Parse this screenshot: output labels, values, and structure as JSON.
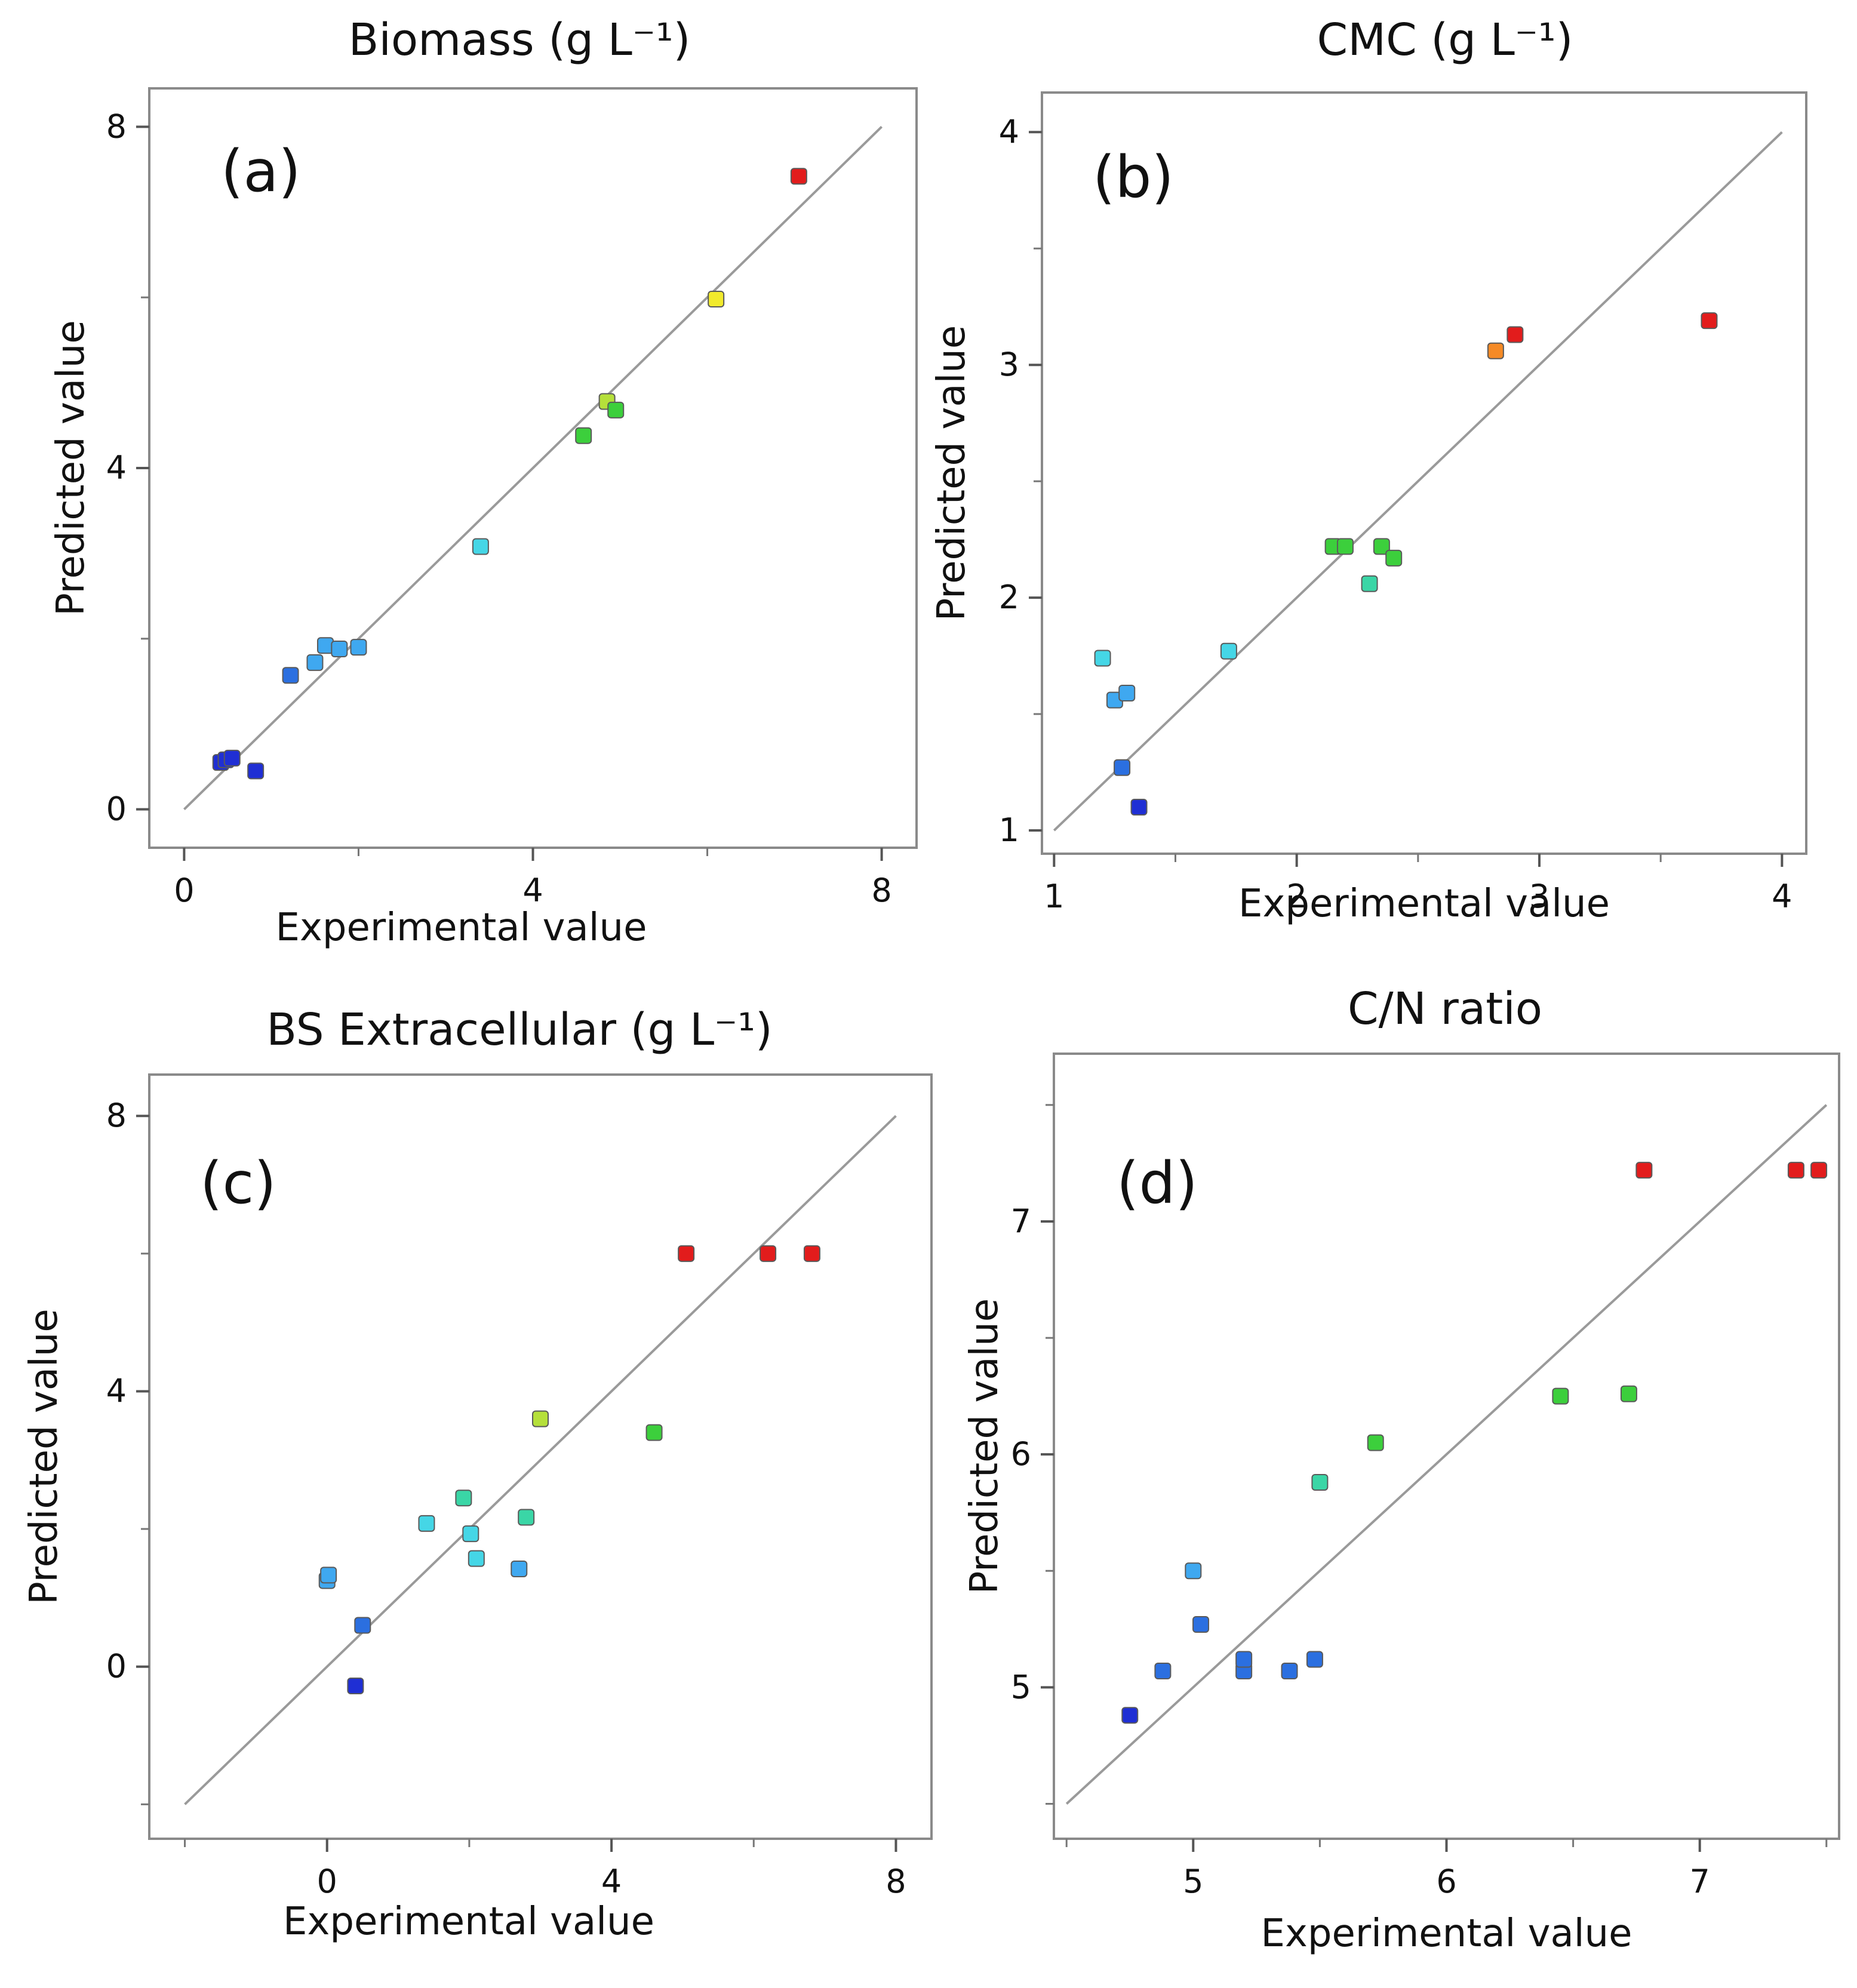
{
  "colors": {
    "diagonal": "#9a9a9a",
    "frame": "#8a8a8a",
    "scale": [
      "#1f2fd4",
      "#2b6fe0",
      "#3fa8f0",
      "#45d6e6",
      "#3ad6a6",
      "#3ccf3c",
      "#b5e03a",
      "#f1ea2c",
      "#f58a26",
      "#e21c1c"
    ]
  },
  "chart_data": [
    {
      "type": "scatter",
      "panel_label": "(a)",
      "title": "Biomass (g L⁻¹)",
      "xlabel": "Experimental value",
      "ylabel": "Predicted value",
      "xlim": [
        -0.4,
        8.4
      ],
      "ylim": [
        -0.45,
        8.45
      ],
      "xticks": [
        {
          "v": 0,
          "label": "0"
        },
        {
          "v": 4,
          "label": "4"
        },
        {
          "v": 8,
          "label": "8"
        }
      ],
      "yticks": [
        {
          "v": 0,
          "label": "0"
        },
        {
          "v": 4,
          "label": "4"
        },
        {
          "v": 8,
          "label": "8"
        }
      ],
      "minor_xticks": [
        2,
        6
      ],
      "minor_yticks": [
        2,
        6
      ],
      "diagonal": [
        0,
        8
      ],
      "points": [
        {
          "x": 0.42,
          "y": 0.55
        },
        {
          "x": 0.48,
          "y": 0.58
        },
        {
          "x": 0.55,
          "y": 0.6
        },
        {
          "x": 0.82,
          "y": 0.45
        },
        {
          "x": 1.22,
          "y": 1.57
        },
        {
          "x": 1.5,
          "y": 1.72
        },
        {
          "x": 1.62,
          "y": 1.92
        },
        {
          "x": 1.78,
          "y": 1.88
        },
        {
          "x": 2.0,
          "y": 1.9
        },
        {
          "x": 3.4,
          "y": 3.08
        },
        {
          "x": 4.58,
          "y": 4.38
        },
        {
          "x": 4.85,
          "y": 4.78
        },
        {
          "x": 4.95,
          "y": 4.68
        },
        {
          "x": 6.1,
          "y": 5.98
        },
        {
          "x": 7.05,
          "y": 7.42
        }
      ]
    },
    {
      "type": "scatter",
      "panel_label": "(b)",
      "title": "CMC (g L⁻¹)",
      "xlabel": "Experimental value",
      "ylabel": "Predicted value",
      "xlim": [
        0.95,
        4.1
      ],
      "ylim": [
        0.9,
        4.17
      ],
      "xticks": [
        {
          "v": 1,
          "label": "1"
        },
        {
          "v": 2,
          "label": "2"
        },
        {
          "v": 3,
          "label": "3"
        },
        {
          "v": 4,
          "label": "4"
        }
      ],
      "yticks": [
        {
          "v": 1,
          "label": "1"
        },
        {
          "v": 2,
          "label": "2"
        },
        {
          "v": 3,
          "label": "3"
        },
        {
          "v": 4,
          "label": "4"
        }
      ],
      "minor_xticks": [
        1.5,
        2.5,
        3.5
      ],
      "minor_yticks": [
        1.5,
        2.5,
        3.5
      ],
      "diagonal": [
        1,
        4
      ],
      "points": [
        {
          "x": 1.2,
          "y": 1.74
        },
        {
          "x": 1.25,
          "y": 1.56
        },
        {
          "x": 1.3,
          "y": 1.59
        },
        {
          "x": 1.28,
          "y": 1.27
        },
        {
          "x": 1.35,
          "y": 1.1
        },
        {
          "x": 1.72,
          "y": 1.77
        },
        {
          "x": 2.15,
          "y": 2.22
        },
        {
          "x": 2.2,
          "y": 2.22
        },
        {
          "x": 2.3,
          "y": 2.06
        },
        {
          "x": 2.35,
          "y": 2.22
        },
        {
          "x": 2.4,
          "y": 2.17
        },
        {
          "x": 2.82,
          "y": 3.06
        },
        {
          "x": 2.9,
          "y": 3.13
        },
        {
          "x": 3.7,
          "y": 3.19
        }
      ]
    },
    {
      "type": "scatter",
      "panel_label": "(c)",
      "title": "BS Extracellular (g L⁻¹)",
      "xlabel": "Experimental value",
      "ylabel": "Predicted value",
      "xlim": [
        -2.5,
        8.5
      ],
      "ylim": [
        -2.5,
        8.6
      ],
      "xticks": [
        {
          "v": 0,
          "label": "0"
        },
        {
          "v": 4,
          "label": "4"
        },
        {
          "v": 8,
          "label": "8"
        }
      ],
      "yticks": [
        {
          "v": 0,
          "label": "0"
        },
        {
          "v": 4,
          "label": "4"
        },
        {
          "v": 8,
          "label": "8"
        }
      ],
      "minor_xticks": [
        -2,
        2,
        6
      ],
      "minor_yticks": [
        -2,
        2,
        6
      ],
      "diagonal": [
        -2,
        8
      ],
      "points": [
        {
          "x": 0.0,
          "y": 1.25
        },
        {
          "x": 0.02,
          "y": 1.33
        },
        {
          "x": 0.5,
          "y": 0.6
        },
        {
          "x": 0.4,
          "y": -0.28
        },
        {
          "x": 1.4,
          "y": 2.08
        },
        {
          "x": 1.92,
          "y": 2.45
        },
        {
          "x": 2.02,
          "y": 1.93
        },
        {
          "x": 2.1,
          "y": 1.57
        },
        {
          "x": 2.7,
          "y": 1.42
        },
        {
          "x": 2.8,
          "y": 2.17
        },
        {
          "x": 3.0,
          "y": 3.6
        },
        {
          "x": 4.6,
          "y": 3.4
        },
        {
          "x": 5.05,
          "y": 6.0
        },
        {
          "x": 6.2,
          "y": 6.0
        },
        {
          "x": 6.82,
          "y": 6.0
        }
      ]
    },
    {
      "type": "scatter",
      "panel_label": "(d)",
      "title": "C/N ratio",
      "xlabel": "Experimental value",
      "ylabel": "Predicted value",
      "xlim": [
        4.45,
        7.55
      ],
      "ylim": [
        4.35,
        7.72
      ],
      "xticks": [
        {
          "v": 5,
          "label": "5"
        },
        {
          "v": 6,
          "label": "6"
        },
        {
          "v": 7,
          "label": "7"
        }
      ],
      "yticks": [
        {
          "v": 5,
          "label": "5"
        },
        {
          "v": 6,
          "label": "6"
        },
        {
          "v": 7,
          "label": "7"
        }
      ],
      "minor_xticks": [
        4.5,
        5.5,
        6.5,
        7.5
      ],
      "minor_yticks": [
        4.5,
        5.5,
        6.5,
        7.5
      ],
      "diagonal": [
        4.5,
        7.5
      ],
      "points": [
        {
          "x": 4.75,
          "y": 4.88
        },
        {
          "x": 4.88,
          "y": 5.07
        },
        {
          "x": 5.0,
          "y": 5.5
        },
        {
          "x": 5.03,
          "y": 5.27
        },
        {
          "x": 5.2,
          "y": 5.07
        },
        {
          "x": 5.2,
          "y": 5.12
        },
        {
          "x": 5.38,
          "y": 5.07
        },
        {
          "x": 5.48,
          "y": 5.12
        },
        {
          "x": 5.5,
          "y": 5.88
        },
        {
          "x": 5.72,
          "y": 6.05
        },
        {
          "x": 6.45,
          "y": 6.25
        },
        {
          "x": 6.72,
          "y": 6.26
        },
        {
          "x": 6.78,
          "y": 7.22
        },
        {
          "x": 7.38,
          "y": 7.22
        },
        {
          "x": 7.47,
          "y": 7.22
        }
      ]
    }
  ]
}
